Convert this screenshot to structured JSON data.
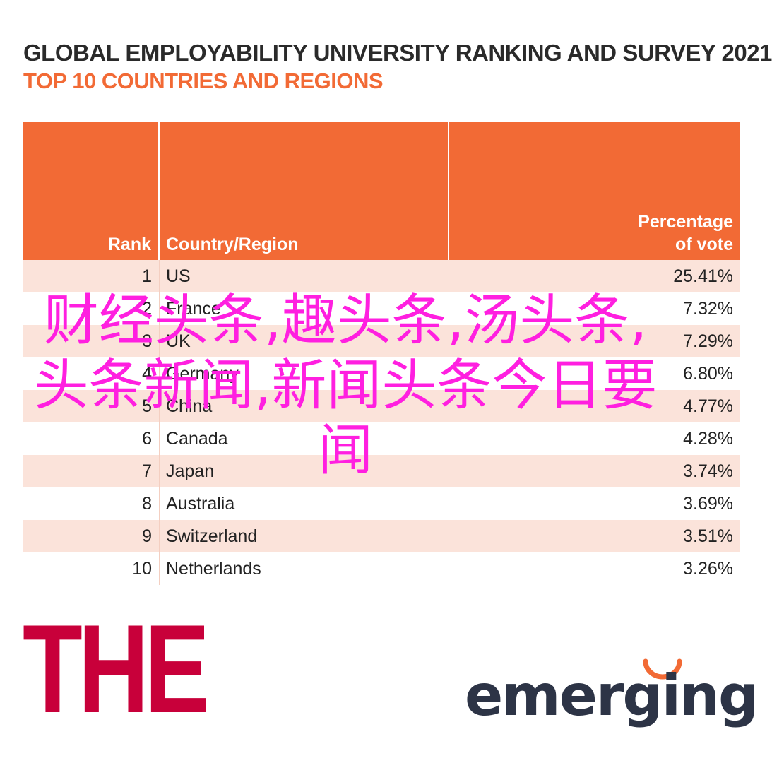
{
  "header": {
    "title": "GLOBAL EMPLOYABILITY UNIVERSITY RANKING AND SURVEY 2021",
    "subtitle": "TOP 10 COUNTRIES AND REGIONS"
  },
  "table": {
    "columns": [
      "Rank",
      "Country/Region",
      "Percentage\nof vote"
    ],
    "rows": [
      {
        "rank": "1",
        "country": "US",
        "pct": "25.41%"
      },
      {
        "rank": "2",
        "country": "France",
        "pct": "7.32%"
      },
      {
        "rank": "3",
        "country": "UK",
        "pct": "7.29%"
      },
      {
        "rank": "4",
        "country": "Germany",
        "pct": "6.80%"
      },
      {
        "rank": "5",
        "country": "China",
        "pct": "4.77%"
      },
      {
        "rank": "6",
        "country": "Canada",
        "pct": "4.28%"
      },
      {
        "rank": "7",
        "country": "Japan",
        "pct": "3.74%"
      },
      {
        "rank": "8",
        "country": "Australia",
        "pct": "3.69%"
      },
      {
        "rank": "9",
        "country": "Switzerland",
        "pct": "3.51%"
      },
      {
        "rank": "10",
        "country": "Netherlands",
        "pct": "3.26%"
      }
    ]
  },
  "watermark": "财经头条,趣头条,汤头条,头条新闻,新闻头条今日要闻",
  "logos": {
    "the": "THE",
    "emerging": "emerging"
  },
  "colors": {
    "accent": "#f26a35",
    "row_tint": "#fbe3da",
    "watermark": "#ff1fe0",
    "the_logo": "#c8003a",
    "emerging_logo": "#2d3446",
    "emerging_arc": "#f26a35"
  }
}
